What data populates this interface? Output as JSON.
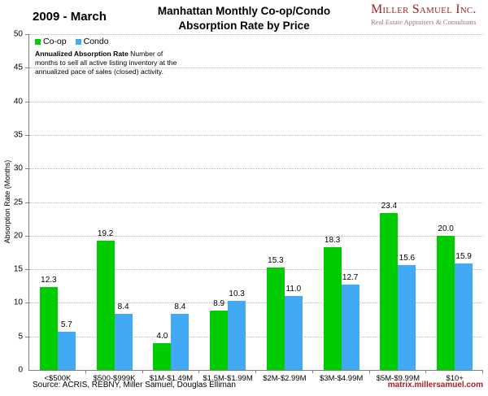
{
  "header": {
    "period": "2009 - March",
    "title_line1": "Manhattan Monthly Co-op/Condo",
    "title_line2": "Absorption Rate by Price",
    "logo_name": "Miller Samuel Inc.",
    "logo_tagline": "Real Estate Appraisers & Consultants"
  },
  "annotation": {
    "bold": "Annualized Absorption Rate",
    "text": "Number of months to sell all active listing inventory at the annualized pace of sales (closed) activity."
  },
  "chart_data": {
    "type": "bar",
    "title": "Manhattan Monthly Co-op/Condo Absorption Rate by Price",
    "categories": [
      "<$500K",
      "$500-$999K",
      "$1M-$1.49M",
      "$1.5M-$1.99M",
      "$2M-$2.99M",
      "$3M-$4.99M",
      "$5M-$9.99M",
      "$10+"
    ],
    "series": [
      {
        "name": "Co-op",
        "color": "#00cc00",
        "values": [
          12.3,
          19.2,
          4.0,
          8.9,
          15.3,
          18.3,
          23.4,
          20.0
        ]
      },
      {
        "name": "Condo",
        "color": "#42aaf5",
        "values": [
          5.7,
          8.4,
          8.4,
          10.3,
          11.0,
          12.7,
          15.6,
          15.9
        ]
      }
    ],
    "xlabel": "",
    "ylabel": "Absorption Rate (Months)",
    "ylim": [
      0,
      50
    ],
    "ytick_step": 5,
    "grid": true,
    "legend_position": "top-left",
    "value_label_decimals": 1
  },
  "footer": {
    "source": "Source: ACRIS, REBNY, Miller Samuel, Douglas Elliman",
    "link": "matrix.millersamuel.com"
  },
  "colors": {
    "brand_red": "#9b2528",
    "tagline_red": "#a4716f",
    "link_red": "#aa1f23",
    "axis_gray": "#808080",
    "grid_gray": "#b8b8b8"
  }
}
